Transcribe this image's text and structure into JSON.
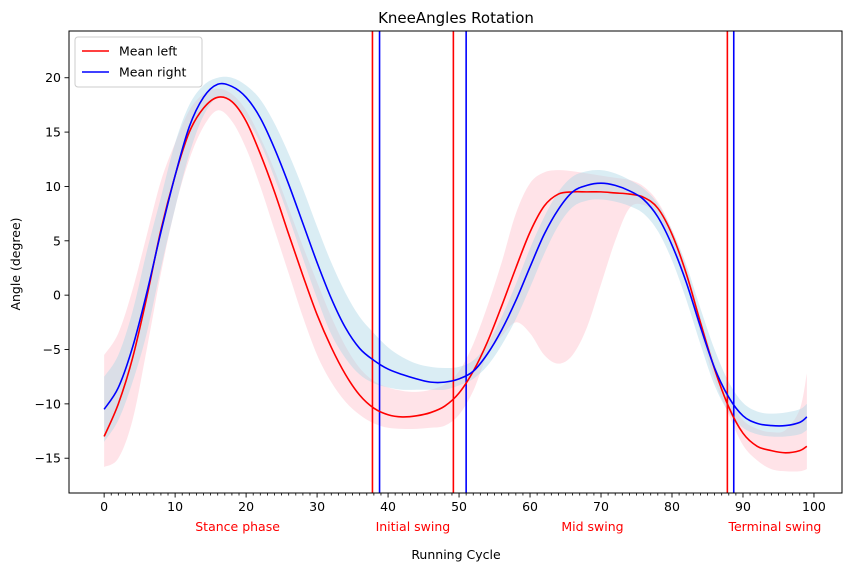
{
  "chart_data": {
    "type": "line",
    "title": "KneeAngles Rotation",
    "xlabel": "Running Cycle",
    "ylabel": "Angle (degree)",
    "xlim": [
      -4.95,
      103.95
    ],
    "ylim": [
      -18.2,
      24.3
    ],
    "xticks": [
      0,
      10,
      20,
      30,
      40,
      50,
      60,
      70,
      80,
      90,
      100
    ],
    "yticks": [
      -15,
      -10,
      -5,
      0,
      5,
      10,
      15,
      20
    ],
    "minor_xtick_step": 1,
    "grid": false,
    "legend_position": "upper-left",
    "series": [
      {
        "name": "Mean left",
        "color": "#ff0000",
        "band_color": "#ffc0cb",
        "x": [
          0,
          2,
          4,
          6,
          8,
          10,
          12,
          14,
          16,
          18,
          20,
          22,
          24,
          26,
          28,
          30,
          32,
          34,
          36,
          38,
          40,
          42,
          44,
          46,
          48,
          50,
          52,
          54,
          56,
          58,
          60,
          62,
          64,
          66,
          68,
          70,
          72,
          74,
          76,
          78,
          80,
          82,
          84,
          86,
          88,
          90,
          92,
          94,
          96,
          98,
          99
        ],
        "mean": [
          -13.0,
          -10.0,
          -5.8,
          -0.2,
          6.0,
          11.0,
          15.0,
          17.2,
          18.2,
          17.8,
          16.0,
          13.0,
          9.5,
          5.6,
          1.8,
          -1.8,
          -4.8,
          -7.3,
          -9.2,
          -10.4,
          -11.0,
          -11.2,
          -11.1,
          -10.8,
          -10.2,
          -9.0,
          -7.0,
          -4.3,
          -1.0,
          2.5,
          5.8,
          8.2,
          9.3,
          9.5,
          9.5,
          9.5,
          9.4,
          9.3,
          9.0,
          8.0,
          5.6,
          2.0,
          -2.5,
          -6.8,
          -10.3,
          -12.7,
          -13.9,
          -14.3,
          -14.5,
          -14.3,
          -13.9
        ],
        "upper": [
          -5.5,
          -3.5,
          0.5,
          5.5,
          10.5,
          14.0,
          17.0,
          18.5,
          19.0,
          18.5,
          17.0,
          14.5,
          11.5,
          8.0,
          4.5,
          1.2,
          -2.0,
          -4.7,
          -6.7,
          -7.9,
          -8.5,
          -8.8,
          -8.9,
          -8.7,
          -8.2,
          -7.0,
          -4.5,
          -1.0,
          3.0,
          7.5,
          10.3,
          11.3,
          11.5,
          11.4,
          11.2,
          11.0,
          10.8,
          10.6,
          10.0,
          8.6,
          6.0,
          2.5,
          -2.0,
          -6.2,
          -9.5,
          -11.5,
          -12.3,
          -12.6,
          -12.4,
          -10.5,
          -7.2
        ],
        "lower": [
          -15.8,
          -15.0,
          -11.5,
          -5.0,
          2.0,
          8.0,
          12.5,
          15.5,
          17.0,
          16.0,
          13.5,
          10.0,
          6.0,
          2.0,
          -2.0,
          -5.5,
          -8.0,
          -9.8,
          -11.0,
          -11.8,
          -12.2,
          -12.3,
          -12.3,
          -12.2,
          -12.0,
          -11.0,
          -8.8,
          -5.5,
          -3.8,
          -2.5,
          -3.5,
          -5.5,
          -6.3,
          -5.5,
          -3.0,
          1.0,
          5.0,
          8.0,
          8.3,
          7.2,
          4.8,
          1.2,
          -3.5,
          -7.8,
          -11.0,
          -13.8,
          -15.2,
          -16.0,
          -16.2,
          -16.2,
          -16.0
        ]
      },
      {
        "name": "Mean right",
        "color": "#0000ff",
        "band_color": "#add8e6",
        "x": [
          0,
          2,
          4,
          6,
          8,
          10,
          12,
          14,
          16,
          18,
          20,
          22,
          24,
          26,
          28,
          30,
          32,
          34,
          36,
          38,
          40,
          42,
          44,
          46,
          48,
          50,
          52,
          54,
          56,
          58,
          60,
          62,
          64,
          66,
          68,
          70,
          72,
          74,
          76,
          78,
          80,
          82,
          84,
          86,
          88,
          90,
          92,
          94,
          96,
          98,
          99
        ],
        "mean": [
          -10.5,
          -8.5,
          -4.8,
          0.2,
          5.8,
          11.0,
          15.5,
          18.2,
          19.4,
          19.2,
          18.2,
          16.3,
          13.5,
          10.2,
          6.6,
          3.0,
          -0.3,
          -3.0,
          -4.9,
          -6.0,
          -6.8,
          -7.3,
          -7.7,
          -8.0,
          -8.0,
          -7.7,
          -7.0,
          -5.4,
          -3.2,
          -0.5,
          2.6,
          5.6,
          7.9,
          9.5,
          10.1,
          10.3,
          10.1,
          9.6,
          8.8,
          7.2,
          4.6,
          1.2,
          -2.9,
          -6.7,
          -9.4,
          -11.1,
          -11.8,
          -12.0,
          -12.0,
          -11.7,
          -11.2
        ],
        "upper": [
          -7.5,
          -5.5,
          -1.5,
          4.0,
          9.0,
          14.0,
          17.5,
          19.3,
          20.0,
          20.0,
          19.3,
          18.0,
          15.8,
          13.0,
          9.8,
          6.3,
          3.0,
          0.2,
          -2.0,
          -3.5,
          -4.8,
          -5.7,
          -6.3,
          -6.6,
          -6.7,
          -6.6,
          -6.0,
          -4.5,
          -2.0,
          1.0,
          4.3,
          7.2,
          9.5,
          10.9,
          11.4,
          11.5,
          11.2,
          10.6,
          9.8,
          8.4,
          6.0,
          2.8,
          -1.2,
          -5.0,
          -8.0,
          -9.9,
          -10.7,
          -10.9,
          -10.8,
          -10.5,
          -10.0
        ],
        "lower": [
          -13.5,
          -11.5,
          -8.0,
          -3.5,
          2.5,
          8.0,
          13.0,
          16.5,
          18.2,
          17.8,
          16.3,
          14.0,
          10.8,
          7.2,
          3.4,
          -0.3,
          -3.6,
          -5.8,
          -7.3,
          -8.1,
          -8.5,
          -8.7,
          -8.7,
          -8.7,
          -8.7,
          -8.3,
          -7.7,
          -6.5,
          -4.6,
          -2.2,
          0.7,
          3.8,
          6.4,
          8.1,
          8.7,
          8.8,
          8.6,
          8.2,
          7.5,
          5.9,
          3.2,
          -0.4,
          -4.5,
          -8.3,
          -10.8,
          -12.2,
          -12.8,
          -13.0,
          -13.0,
          -12.8,
          -12.4
        ]
      }
    ],
    "vertical_lines": [
      {
        "x": 37.8,
        "color": "#ff0000"
      },
      {
        "x": 38.8,
        "color": "#0000ff"
      },
      {
        "x": 49.2,
        "color": "#ff0000"
      },
      {
        "x": 51.0,
        "color": "#0000ff"
      },
      {
        "x": 87.8,
        "color": "#ff0000"
      },
      {
        "x": 88.7,
        "color": "#0000ff"
      }
    ],
    "phase_labels": [
      {
        "text": "Stance phase",
        "x": 18.8
      },
      {
        "text": "Initial swing",
        "x": 43.5
      },
      {
        "text": "Mid swing",
        "x": 68.8
      },
      {
        "text": "Terminal swing",
        "x": 94.5
      }
    ],
    "phase_label_color": "#ff0000"
  }
}
